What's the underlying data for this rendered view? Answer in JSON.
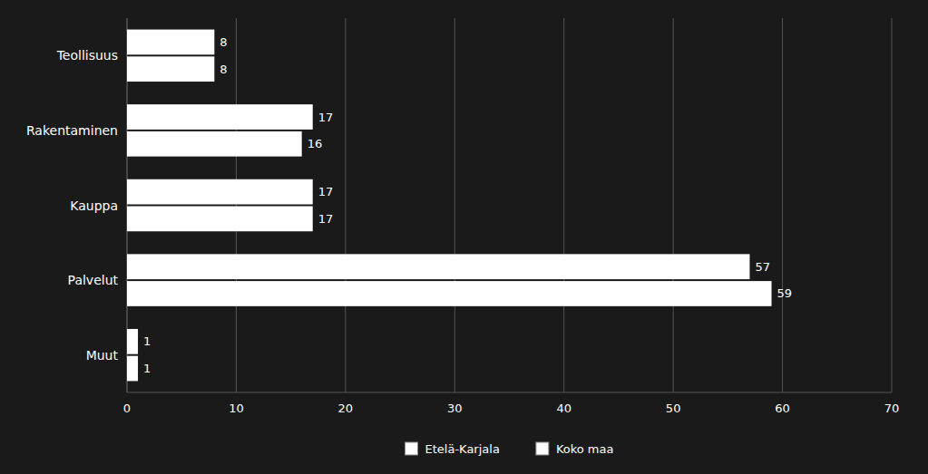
{
  "chart_data": {
    "type": "bar",
    "orientation": "horizontal",
    "categories": [
      "Muut",
      "Palvelut",
      "Kauppa",
      "Rakentaminen",
      "Teollisuus"
    ],
    "series": [
      {
        "name": "Etelä-Karjala",
        "color": "#ffffff",
        "values": [
          1,
          57,
          17,
          17,
          8
        ]
      },
      {
        "name": "Koko maa",
        "color": "#ffffff",
        "values": [
          1,
          59,
          17,
          16,
          8
        ]
      }
    ],
    "xlim": [
      0,
      70
    ],
    "xticks": [
      0,
      10,
      20,
      30,
      40,
      50,
      60,
      70
    ],
    "grid": true,
    "data_labels": true,
    "legend": "bottom"
  }
}
